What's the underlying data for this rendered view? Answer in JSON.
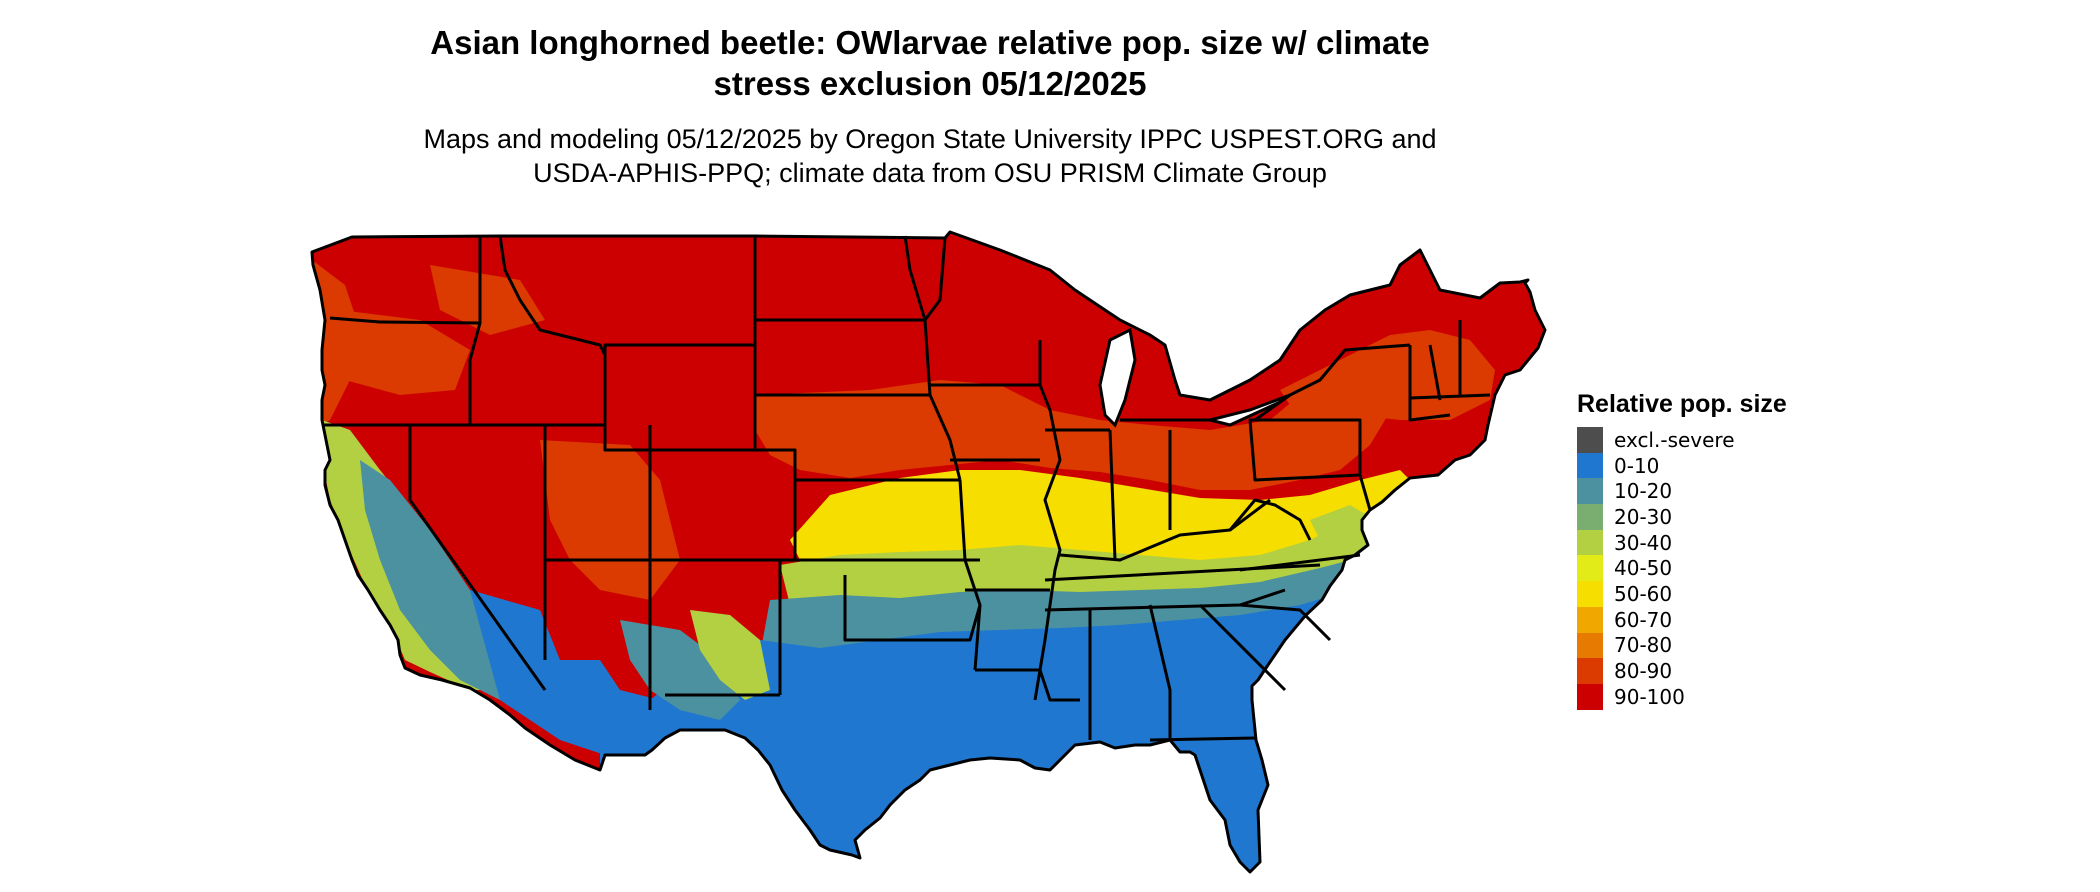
{
  "title": "Asian longhorned beetle: OWlarvae relative pop. size w/ climate stress exclusion 05/12/2025",
  "subtitle": "Maps and modeling 05/12/2025 by Oregon State University IPPC USPEST.ORG and USDA-APHIS-PPQ; climate data from OSU PRISM Climate Group",
  "legend": {
    "title": "Relative pop. size",
    "items": [
      {
        "label": "excl.-severe",
        "color": "#4d4d4d"
      },
      {
        "label": "0-10",
        "color": "#1f77d0"
      },
      {
        "label": "10-20",
        "color": "#4b91a0"
      },
      {
        "label": "20-30",
        "color": "#7aae70"
      },
      {
        "label": "30-40",
        "color": "#b3cf42"
      },
      {
        "label": "40-50",
        "color": "#e2ea17"
      },
      {
        "label": "50-60",
        "color": "#f6de00"
      },
      {
        "label": "60-70",
        "color": "#f0a800"
      },
      {
        "label": "70-80",
        "color": "#e77a00"
      },
      {
        "label": "80-90",
        "color": "#db3a00"
      },
      {
        "label": "90-100",
        "color": "#cc0000"
      }
    ]
  },
  "map": {
    "region": "contiguous United States",
    "colors": {
      "v90_100": "#cc0000",
      "v80_90": "#db3a00",
      "v50_60": "#f6de00",
      "v30_40": "#b3cf42",
      "v10_20": "#4b91a0",
      "v0_10": "#1f77d0",
      "border": "#000000"
    }
  }
}
